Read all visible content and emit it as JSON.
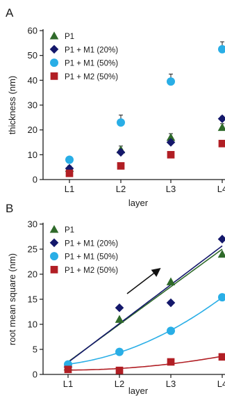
{
  "chart_data": [
    {
      "panel": "A",
      "type": "scatter",
      "xlabel": "layer",
      "ylabel": "thickness (nm)",
      "categories": [
        "L1",
        "L2",
        "L3",
        "L4"
      ],
      "ylim": [
        0,
        60
      ],
      "yticks": [
        0,
        10,
        20,
        30,
        40,
        50,
        60
      ],
      "legend_position": "top-left",
      "series": [
        {
          "name": "P1",
          "color": "#2f6a2a",
          "marker": "triangle",
          "values": [
            4.5,
            12.0,
            17.0,
            21.0
          ],
          "errors": [
            1.0,
            1.5,
            1.5,
            1.5
          ]
        },
        {
          "name": "P1 + M1 (20%)",
          "color": "#14186b",
          "marker": "diamond",
          "values": [
            4.5,
            11.0,
            15.0,
            24.5
          ],
          "errors": [
            0.8,
            1.0,
            1.0,
            1.0
          ]
        },
        {
          "name": "P1 + M1 (50%)",
          "color": "#29aee6",
          "marker": "circle",
          "values": [
            8.0,
            23.0,
            39.5,
            52.5
          ],
          "errors": [
            0.8,
            3.0,
            3.0,
            3.0
          ]
        },
        {
          "name": "P1 + M2 (50%)",
          "color": "#b11e24",
          "marker": "square",
          "values": [
            2.5,
            5.5,
            10.0,
            14.5
          ],
          "errors": [
            0.5,
            0.5,
            0.5,
            0.5
          ]
        }
      ]
    },
    {
      "panel": "B",
      "type": "scatter",
      "xlabel": "layer",
      "ylabel": "root mean square (nm)",
      "categories": [
        "L1",
        "L2",
        "L3",
        "L4"
      ],
      "ylim": [
        0,
        30
      ],
      "yticks": [
        0,
        5,
        10,
        15,
        20,
        25,
        30
      ],
      "legend_position": "top-left",
      "annotation": "arrow pointing up-right",
      "series": [
        {
          "name": "P1",
          "color": "#2f6a2a",
          "marker": "triangle",
          "values": [
            1.5,
            11.0,
            18.5,
            24.0
          ],
          "fit": "linear"
        },
        {
          "name": "P1 + M1 (20%)",
          "color": "#14186b",
          "marker": "diamond",
          "values": [
            1.5,
            13.3,
            14.3,
            27.0
          ],
          "fit": "linear"
        },
        {
          "name": "P1 + M1 (50%)",
          "color": "#29aee6",
          "marker": "circle",
          "values": [
            2.0,
            4.5,
            8.7,
            15.4
          ],
          "fit": "quadratic"
        },
        {
          "name": "P1 + M2 (50%)",
          "color": "#b11e24",
          "marker": "square",
          "values": [
            1.0,
            0.8,
            2.5,
            3.5
          ],
          "fit": "quadratic"
        }
      ]
    }
  ]
}
